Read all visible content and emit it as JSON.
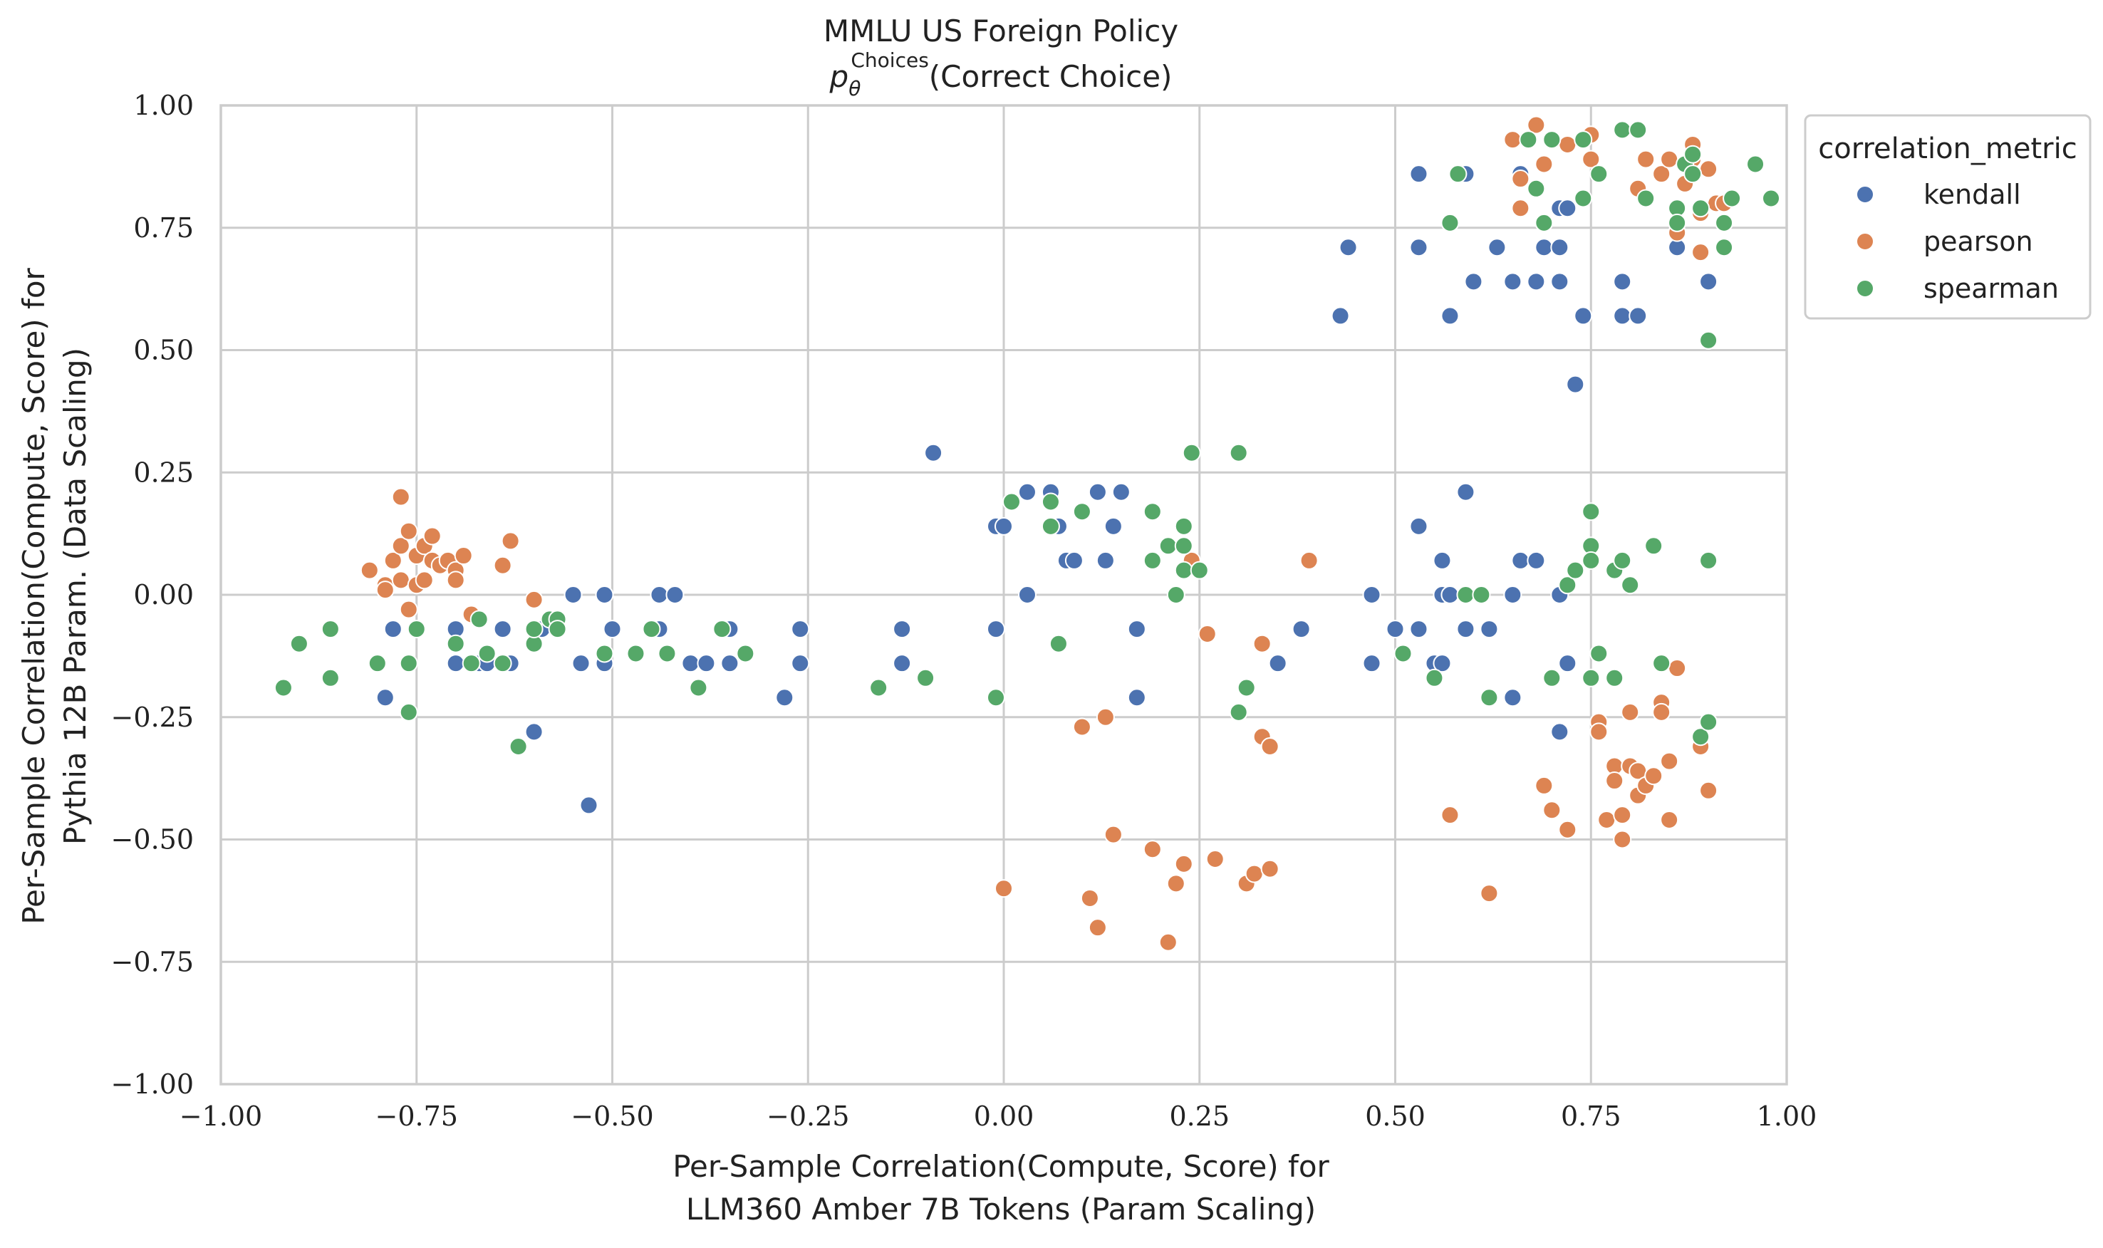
{
  "chart_data": {
    "type": "scatter",
    "title": "MMLU US Foreign Policy",
    "subtitle": "p_θ^Choices(Correct Choice)",
    "subtitle_parts": {
      "p": "p",
      "sub": "θ",
      "sup": "Choices",
      "rest": "(Correct Choice)"
    },
    "xlabel": [
      "Per-Sample Correlation(Compute, Score) for",
      "LLM360 Amber 7B Tokens (Param Scaling)"
    ],
    "ylabel": [
      "Per-Sample Correlation(Compute, Score) for",
      "Pythia 12B Param. (Data Scaling)"
    ],
    "xlim": [
      -1.0,
      1.0
    ],
    "ylim": [
      -1.0,
      1.0
    ],
    "xticks": [
      -1.0,
      -0.75,
      -0.5,
      -0.25,
      0.0,
      0.25,
      0.5,
      0.75,
      1.0
    ],
    "yticks": [
      -1.0,
      -0.75,
      -0.5,
      -0.25,
      0.0,
      0.25,
      0.5,
      0.75,
      1.0
    ],
    "xtick_labels": [
      "−1.00",
      "−0.75",
      "−0.50",
      "−0.25",
      "0.00",
      "0.25",
      "0.50",
      "0.75",
      "1.00"
    ],
    "ytick_labels": [
      "−1.00",
      "−0.75",
      "−0.50",
      "−0.25",
      "0.00",
      "0.25",
      "0.50",
      "0.75",
      "1.00"
    ],
    "grid": true,
    "legend": {
      "title": "correlation_metric",
      "placement": "outside-top-right"
    },
    "series": [
      {
        "name": "kendall",
        "color": "#4c72b0",
        "points": [
          [
            -0.78,
            -0.07
          ],
          [
            -0.79,
            -0.21
          ],
          [
            -0.76,
            -0.14
          ],
          [
            -0.7,
            -0.07
          ],
          [
            -0.7,
            -0.14
          ],
          [
            -0.67,
            -0.14
          ],
          [
            -0.66,
            -0.14
          ],
          [
            -0.64,
            -0.07
          ],
          [
            -0.63,
            -0.14
          ],
          [
            -0.6,
            -0.28
          ],
          [
            -0.59,
            -0.07
          ],
          [
            -0.55,
            0.0
          ],
          [
            -0.54,
            -0.14
          ],
          [
            -0.53,
            -0.43
          ],
          [
            -0.51,
            0.0
          ],
          [
            -0.51,
            -0.14
          ],
          [
            -0.5,
            -0.07
          ],
          [
            -0.44,
            0.0
          ],
          [
            -0.44,
            -0.07
          ],
          [
            -0.42,
            0.0
          ],
          [
            -0.4,
            -0.14
          ],
          [
            -0.38,
            -0.14
          ],
          [
            -0.35,
            -0.07
          ],
          [
            -0.35,
            -0.14
          ],
          [
            -0.28,
            -0.21
          ],
          [
            -0.26,
            -0.07
          ],
          [
            -0.26,
            -0.14
          ],
          [
            -0.13,
            -0.07
          ],
          [
            -0.13,
            -0.14
          ],
          [
            -0.09,
            0.29
          ],
          [
            -0.01,
            -0.07
          ],
          [
            -0.01,
            0.14
          ],
          [
            0.0,
            0.14
          ],
          [
            0.03,
            0.21
          ],
          [
            0.03,
            0.0
          ],
          [
            0.06,
            0.21
          ],
          [
            0.07,
            0.14
          ],
          [
            0.08,
            0.07
          ],
          [
            0.09,
            0.07
          ],
          [
            0.12,
            0.21
          ],
          [
            0.13,
            0.07
          ],
          [
            0.14,
            0.14
          ],
          [
            0.15,
            0.21
          ],
          [
            0.17,
            -0.07
          ],
          [
            0.17,
            -0.21
          ],
          [
            0.35,
            -0.14
          ],
          [
            0.38,
            -0.07
          ],
          [
            0.43,
            0.57
          ],
          [
            0.44,
            0.71
          ],
          [
            0.47,
            0.0
          ],
          [
            0.47,
            -0.14
          ],
          [
            0.5,
            -0.07
          ],
          [
            0.53,
            0.86
          ],
          [
            0.53,
            0.71
          ],
          [
            0.53,
            0.14
          ],
          [
            0.53,
            -0.07
          ],
          [
            0.55,
            -0.14
          ],
          [
            0.56,
            0.07
          ],
          [
            0.56,
            0.0
          ],
          [
            0.56,
            -0.14
          ],
          [
            0.57,
            0.0
          ],
          [
            0.57,
            0.57
          ],
          [
            0.59,
            0.86
          ],
          [
            0.59,
            0.21
          ],
          [
            0.59,
            -0.07
          ],
          [
            0.6,
            0.64
          ],
          [
            0.62,
            -0.07
          ],
          [
            0.63,
            0.71
          ],
          [
            0.65,
            0.64
          ],
          [
            0.65,
            0.0
          ],
          [
            0.65,
            -0.21
          ],
          [
            0.66,
            0.86
          ],
          [
            0.66,
            0.07
          ],
          [
            0.68,
            0.64
          ],
          [
            0.68,
            0.07
          ],
          [
            0.69,
            0.71
          ],
          [
            0.71,
            0.71
          ],
          [
            0.71,
            0.64
          ],
          [
            0.71,
            0.79
          ],
          [
            0.71,
            0.0
          ],
          [
            0.71,
            -0.28
          ],
          [
            0.72,
            0.79
          ],
          [
            0.72,
            -0.14
          ],
          [
            0.73,
            0.43
          ],
          [
            0.74,
            0.57
          ],
          [
            0.76,
            -0.28
          ],
          [
            0.79,
            0.64
          ],
          [
            0.79,
            0.57
          ],
          [
            0.81,
            0.57
          ],
          [
            0.86,
            0.71
          ],
          [
            0.9,
            0.64
          ]
        ]
      },
      {
        "name": "pearson",
        "color": "#dd8452",
        "points": [
          [
            -0.81,
            0.05
          ],
          [
            -0.79,
            0.02
          ],
          [
            -0.79,
            0.01
          ],
          [
            -0.78,
            0.07
          ],
          [
            -0.77,
            0.2
          ],
          [
            -0.77,
            0.1
          ],
          [
            -0.77,
            0.03
          ],
          [
            -0.76,
            0.13
          ],
          [
            -0.76,
            -0.03
          ],
          [
            -0.75,
            0.08
          ],
          [
            -0.75,
            0.02
          ],
          [
            -0.74,
            0.1
          ],
          [
            -0.74,
            0.03
          ],
          [
            -0.73,
            0.12
          ],
          [
            -0.73,
            0.07
          ],
          [
            -0.72,
            0.06
          ],
          [
            -0.71,
            0.07
          ],
          [
            -0.7,
            0.05
          ],
          [
            -0.7,
            0.03
          ],
          [
            -0.69,
            0.08
          ],
          [
            -0.68,
            -0.04
          ],
          [
            -0.64,
            0.06
          ],
          [
            -0.63,
            0.11
          ],
          [
            -0.6,
            -0.01
          ],
          [
            0.0,
            -0.6
          ],
          [
            0.1,
            -0.27
          ],
          [
            0.11,
            -0.62
          ],
          [
            0.12,
            -0.68
          ],
          [
            0.13,
            -0.25
          ],
          [
            0.14,
            -0.49
          ],
          [
            0.19,
            -0.52
          ],
          [
            0.21,
            -0.71
          ],
          [
            0.22,
            -0.59
          ],
          [
            0.23,
            -0.55
          ],
          [
            0.24,
            0.07
          ],
          [
            0.26,
            -0.08
          ],
          [
            0.27,
            -0.54
          ],
          [
            0.31,
            -0.59
          ],
          [
            0.32,
            -0.57
          ],
          [
            0.33,
            -0.1
          ],
          [
            0.33,
            -0.29
          ],
          [
            0.34,
            -0.31
          ],
          [
            0.34,
            -0.56
          ],
          [
            0.39,
            0.07
          ],
          [
            0.57,
            -0.45
          ],
          [
            0.62,
            -0.61
          ],
          [
            0.65,
            0.93
          ],
          [
            0.66,
            0.85
          ],
          [
            0.66,
            0.79
          ],
          [
            0.68,
            0.96
          ],
          [
            0.69,
            0.88
          ],
          [
            0.69,
            -0.39
          ],
          [
            0.7,
            -0.44
          ],
          [
            0.72,
            0.92
          ],
          [
            0.72,
            -0.48
          ],
          [
            0.74,
            0.93
          ],
          [
            0.75,
            0.89
          ],
          [
            0.75,
            0.94
          ],
          [
            0.76,
            -0.26
          ],
          [
            0.76,
            -0.28
          ],
          [
            0.77,
            -0.46
          ],
          [
            0.78,
            -0.35
          ],
          [
            0.78,
            -0.38
          ],
          [
            0.79,
            0.95
          ],
          [
            0.79,
            -0.5
          ],
          [
            0.79,
            -0.45
          ],
          [
            0.8,
            -0.35
          ],
          [
            0.8,
            -0.24
          ],
          [
            0.81,
            -0.41
          ],
          [
            0.81,
            -0.36
          ],
          [
            0.81,
            0.83
          ],
          [
            0.82,
            0.89
          ],
          [
            0.82,
            -0.39
          ],
          [
            0.83,
            -0.37
          ],
          [
            0.84,
            -0.22
          ],
          [
            0.84,
            -0.24
          ],
          [
            0.84,
            0.86
          ],
          [
            0.85,
            0.89
          ],
          [
            0.85,
            -0.34
          ],
          [
            0.85,
            -0.46
          ],
          [
            0.86,
            0.74
          ],
          [
            0.87,
            0.84
          ],
          [
            0.88,
            0.92
          ],
          [
            0.88,
            0.89
          ],
          [
            0.89,
            0.78
          ],
          [
            0.89,
            0.7
          ],
          [
            0.9,
            -0.4
          ],
          [
            0.9,
            0.87
          ],
          [
            0.91,
            0.8
          ],
          [
            0.92,
            0.8
          ],
          [
            0.89,
            -0.31
          ],
          [
            0.86,
            -0.15
          ]
        ]
      },
      {
        "name": "spearman",
        "color": "#55a868",
        "points": [
          [
            -0.92,
            -0.19
          ],
          [
            -0.9,
            -0.1
          ],
          [
            -0.86,
            -0.07
          ],
          [
            -0.86,
            -0.17
          ],
          [
            -0.8,
            -0.14
          ],
          [
            -0.76,
            -0.24
          ],
          [
            -0.76,
            -0.14
          ],
          [
            -0.75,
            -0.07
          ],
          [
            -0.7,
            -0.1
          ],
          [
            -0.68,
            -0.14
          ],
          [
            -0.67,
            -0.05
          ],
          [
            -0.66,
            -0.12
          ],
          [
            -0.64,
            -0.14
          ],
          [
            -0.62,
            -0.31
          ],
          [
            -0.6,
            -0.1
          ],
          [
            -0.6,
            -0.07
          ],
          [
            -0.58,
            -0.05
          ],
          [
            -0.57,
            -0.05
          ],
          [
            -0.57,
            -0.07
          ],
          [
            -0.51,
            -0.12
          ],
          [
            -0.47,
            -0.12
          ],
          [
            -0.45,
            -0.07
          ],
          [
            -0.43,
            -0.12
          ],
          [
            -0.39,
            -0.19
          ],
          [
            -0.36,
            -0.07
          ],
          [
            -0.33,
            -0.12
          ],
          [
            -0.16,
            -0.19
          ],
          [
            -0.1,
            -0.17
          ],
          [
            -0.01,
            -0.21
          ],
          [
            0.01,
            0.19
          ],
          [
            0.06,
            0.14
          ],
          [
            0.06,
            0.19
          ],
          [
            0.07,
            -0.1
          ],
          [
            0.1,
            0.17
          ],
          [
            0.19,
            0.07
          ],
          [
            0.19,
            0.17
          ],
          [
            0.21,
            0.1
          ],
          [
            0.22,
            0.0
          ],
          [
            0.23,
            0.14
          ],
          [
            0.23,
            0.1
          ],
          [
            0.23,
            0.05
          ],
          [
            0.24,
            0.29
          ],
          [
            0.25,
            0.05
          ],
          [
            0.3,
            0.29
          ],
          [
            0.3,
            -0.24
          ],
          [
            0.31,
            -0.19
          ],
          [
            0.51,
            -0.12
          ],
          [
            0.55,
            -0.17
          ],
          [
            0.57,
            0.76
          ],
          [
            0.58,
            0.86
          ],
          [
            0.59,
            0.0
          ],
          [
            0.61,
            0.0
          ],
          [
            0.62,
            -0.21
          ],
          [
            0.67,
            0.93
          ],
          [
            0.68,
            0.83
          ],
          [
            0.69,
            0.76
          ],
          [
            0.7,
            0.93
          ],
          [
            0.7,
            -0.17
          ],
          [
            0.72,
            0.02
          ],
          [
            0.73,
            0.05
          ],
          [
            0.74,
            0.93
          ],
          [
            0.74,
            0.81
          ],
          [
            0.75,
            -0.17
          ],
          [
            0.75,
            0.17
          ],
          [
            0.75,
            0.1
          ],
          [
            0.75,
            0.07
          ],
          [
            0.76,
            0.86
          ],
          [
            0.76,
            -0.12
          ],
          [
            0.78,
            0.05
          ],
          [
            0.78,
            -0.17
          ],
          [
            0.79,
            0.07
          ],
          [
            0.79,
            0.95
          ],
          [
            0.8,
            0.02
          ],
          [
            0.81,
            0.95
          ],
          [
            0.82,
            0.81
          ],
          [
            0.83,
            0.1
          ],
          [
            0.84,
            -0.14
          ],
          [
            0.86,
            0.79
          ],
          [
            0.86,
            0.76
          ],
          [
            0.87,
            0.88
          ],
          [
            0.88,
            0.9
          ],
          [
            0.88,
            0.86
          ],
          [
            0.89,
            0.79
          ],
          [
            0.89,
            -0.29
          ],
          [
            0.9,
            0.07
          ],
          [
            0.9,
            -0.26
          ],
          [
            0.9,
            0.52
          ],
          [
            0.92,
            0.76
          ],
          [
            0.92,
            0.71
          ],
          [
            0.93,
            0.81
          ],
          [
            0.96,
            0.88
          ],
          [
            0.98,
            0.81
          ]
        ]
      }
    ]
  }
}
